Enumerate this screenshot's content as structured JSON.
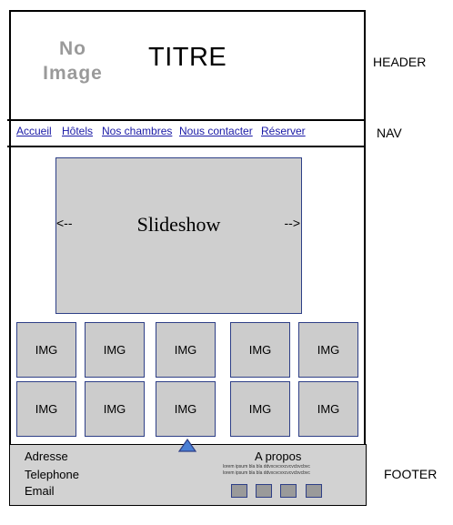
{
  "logo": {
    "line1": "No",
    "line2": "Image"
  },
  "header": {
    "title": "TITRE"
  },
  "labels": {
    "header": "HEADER",
    "nav": "NAV",
    "footer": "FOOTER"
  },
  "nav": {
    "items": [
      {
        "label": "Accueil"
      },
      {
        "label": "Hôtels"
      },
      {
        "label": "Nos chambres"
      },
      {
        "label": "Nous contacter"
      },
      {
        "label": "Réserver"
      }
    ]
  },
  "slideshow": {
    "label": "Slideshow",
    "prev": "<--",
    "next": "-->"
  },
  "gallery": {
    "items": [
      "IMG",
      "IMG",
      "IMG",
      "IMG",
      "IMG",
      "IMG",
      "IMG",
      "IMG",
      "IMG",
      "IMG"
    ]
  },
  "footer": {
    "address": "Adresse",
    "telephone": "Telephone",
    "email": "Email",
    "about_title": "A propos",
    "about_line1": "lorem ipsum bla bla ddvxcvcvxcvcvcbvcbvc",
    "about_line2": "lorem ipsum bla bla ddvxcvcvxcvcvcbvcbvc"
  },
  "colors": {
    "box_border": "#2e3f87",
    "box_fill": "#cccccc",
    "link": "#1a1aa6",
    "triangle": "#4a7fd4"
  }
}
